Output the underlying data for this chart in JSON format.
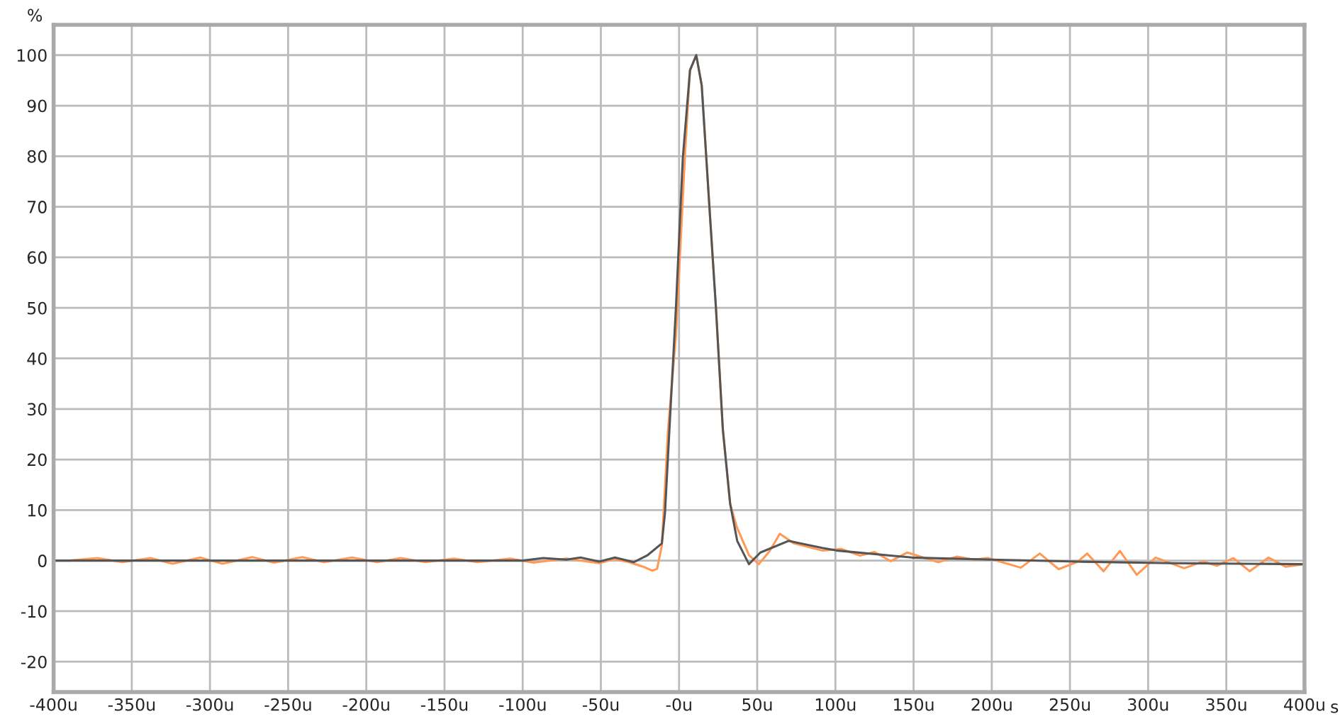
{
  "chart_data": {
    "type": "line",
    "xlabel": "s",
    "ylabel": "%",
    "xlim": [
      -400,
      400
    ],
    "ylim": [
      -26,
      106
    ],
    "xticks": [
      {
        "value": -400,
        "label": "-400u"
      },
      {
        "value": -350,
        "label": "-350u"
      },
      {
        "value": -300,
        "label": "-300u"
      },
      {
        "value": -250,
        "label": "-250u"
      },
      {
        "value": -200,
        "label": "-200u"
      },
      {
        "value": -150,
        "label": "-150u"
      },
      {
        "value": -100,
        "label": "-100u"
      },
      {
        "value": -50,
        "label": "-50u"
      },
      {
        "value": 0,
        "label": "-0u"
      },
      {
        "value": 50,
        "label": "50u"
      },
      {
        "value": 100,
        "label": "100u"
      },
      {
        "value": 150,
        "label": "150u"
      },
      {
        "value": 200,
        "label": "200u"
      },
      {
        "value": 250,
        "label": "250u"
      },
      {
        "value": 300,
        "label": "300u"
      },
      {
        "value": 350,
        "label": "350u"
      },
      {
        "value": 400,
        "label": "400u"
      }
    ],
    "yticks": [
      -20,
      -10,
      0,
      10,
      20,
      30,
      40,
      50,
      60,
      70,
      80,
      90,
      100
    ],
    "grid": true,
    "marker": "none",
    "line_style": "solid",
    "series": [
      {
        "color": "#ff9955",
        "x": [
          -400,
          -390,
          -372,
          -356,
          -338,
          -324,
          -306,
          -292,
          -273,
          -259,
          -241,
          -227,
          -209,
          -193,
          -178,
          -162,
          -144,
          -129,
          -108,
          -93,
          -72,
          -51,
          -42,
          -32,
          -23,
          -17,
          -14,
          -11,
          -7,
          -2,
          4,
          7,
          11,
          14.5,
          19,
          23.6,
          28,
          32.7,
          37,
          44.7,
          51,
          58,
          64.4,
          73.5,
          91.6,
          103.7,
          115.8,
          125,
          135.4,
          146,
          165.7,
          177.8,
          188.4,
          197.5,
          218.6,
          230.7,
          242.8,
          255,
          261,
          271.5,
          282,
          292.7,
          304.8,
          323,
          335,
          344,
          354.5,
          365,
          377,
          387.8,
          400
        ],
        "values": [
          0,
          0,
          0.5,
          -0.3,
          0.5,
          -0.6,
          0.6,
          -0.6,
          0.7,
          -0.4,
          0.7,
          -0.3,
          0.6,
          -0.3,
          0.5,
          -0.3,
          0.4,
          -0.3,
          0.4,
          -0.4,
          0.4,
          -0.5,
          0.3,
          -0.3,
          -1.2,
          -2,
          -1.6,
          3,
          26,
          44.5,
          81.4,
          97,
          100,
          94,
          72,
          50,
          26,
          11.2,
          6.6,
          1.1,
          -0.7,
          1.9,
          5.3,
          3.4,
          2,
          2.3,
          1,
          1.7,
          -0.1,
          1.6,
          -0.3,
          0.8,
          0.2,
          0.5,
          -1.4,
          1.4,
          -1.7,
          -0.2,
          1.4,
          -2.1,
          1.9,
          -2.8,
          0.6,
          -1.5,
          -0.2,
          -1,
          0.5,
          -2.1,
          0.6,
          -1.2,
          -0.7
        ]
      },
      {
        "color": "#555555",
        "x": [
          -400,
          -350,
          -300,
          -250,
          -200,
          -150,
          -100,
          -87,
          -72,
          -63,
          -51,
          -41,
          -29,
          -20,
          -11,
          -9,
          -2,
          2.4,
          7,
          11,
          14.5,
          19,
          23.6,
          28,
          32.7,
          37.2,
          44.7,
          52,
          70,
          91.6,
          100.7,
          149,
          200,
          255,
          315,
          400
        ],
        "values": [
          0,
          0,
          0,
          0,
          0,
          0,
          0,
          0.5,
          0.2,
          0.6,
          -0.2,
          0.6,
          -0.3,
          1.1,
          3.4,
          9.4,
          50,
          79.6,
          97,
          100,
          94,
          72,
          50,
          26,
          11.2,
          3.9,
          -0.7,
          1.6,
          3.9,
          2.5,
          2,
          0.6,
          0.2,
          -0.2,
          -0.5,
          -0.7
        ]
      }
    ]
  }
}
